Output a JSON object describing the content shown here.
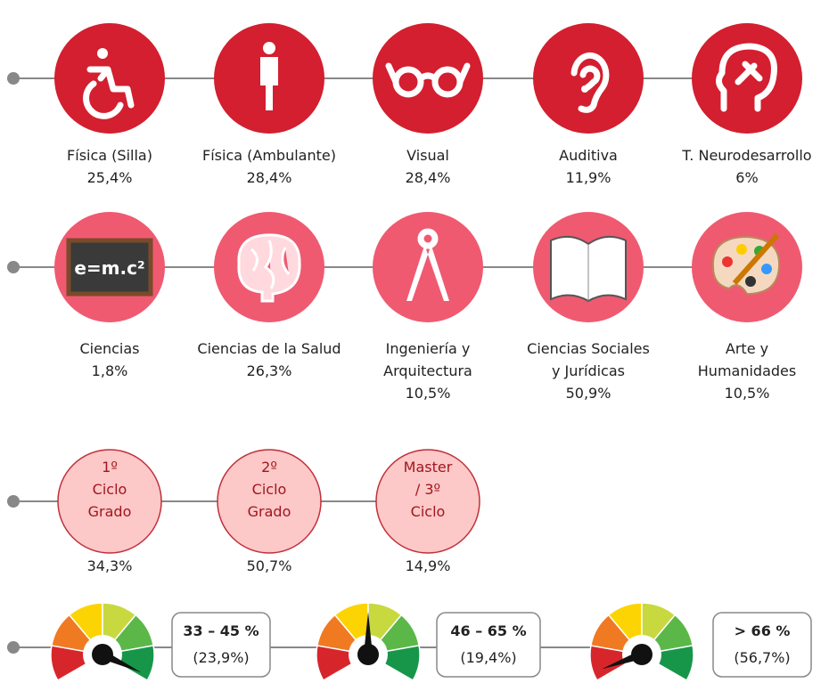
{
  "disability": [
    {
      "label": [
        "Física (Silla)"
      ],
      "percent": "25,4%"
    },
    {
      "label": [
        "Física (Ambulante)"
      ],
      "percent": "28,4%"
    },
    {
      "label": [
        "Visual"
      ],
      "percent": "28,4%"
    },
    {
      "label": [
        "Auditiva"
      ],
      "percent": "11,9%"
    },
    {
      "label": [
        "T. Neurodesarrollo"
      ],
      "percent": "6%"
    }
  ],
  "fields": [
    {
      "label": [
        "Ciencias"
      ],
      "percent": "1,8%"
    },
    {
      "label": [
        "Ciencias de la Salud"
      ],
      "percent": "26,3%"
    },
    {
      "label": [
        "Ingeniería y",
        "Arquitectura"
      ],
      "percent": "10,5%"
    },
    {
      "label": [
        "Ciencias Sociales",
        "y Jurídicas"
      ],
      "percent": "50,9%"
    },
    {
      "label": [
        "Arte y",
        "Humanidades"
      ],
      "percent": "10,5%"
    }
  ],
  "formula": "e=m.c²",
  "cycles": [
    {
      "label": [
        "1º",
        "Ciclo",
        "Grado"
      ],
      "percent": "34,3%"
    },
    {
      "label": [
        "2º",
        "Ciclo",
        "Grado"
      ],
      "percent": "50,7%"
    },
    {
      "label": [
        "Master",
        "/ 3º",
        "Ciclo"
      ],
      "percent": "14,9%"
    }
  ],
  "gauges": [
    {
      "range": "33 – 45 %",
      "percent": "(23,9%)"
    },
    {
      "range": "46 – 65 %",
      "percent": "(19,4%)"
    },
    {
      "range": "> 66 %",
      "percent": "(56,7%)"
    }
  ]
}
